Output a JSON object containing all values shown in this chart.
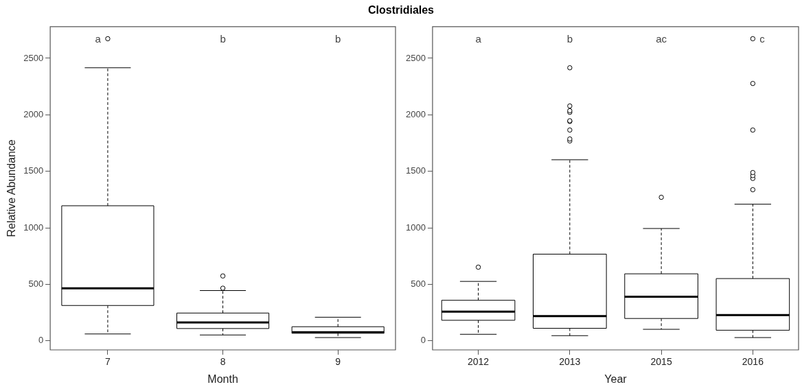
{
  "chart_data": [
    {
      "type": "box",
      "title": "Clostridiales",
      "xlabel": "Month",
      "ylabel": "Relative Abundance",
      "categories": [
        "7",
        "8",
        "9"
      ],
      "ylim": [
        -80,
        2780
      ],
      "yticks": [
        0,
        500,
        1000,
        1500,
        2000,
        2500
      ],
      "grid": false,
      "legend": false,
      "boxes": [
        {
          "low": 61,
          "q1": 313,
          "median": 464,
          "q3": 1195,
          "high": 2416,
          "outliers": [
            2673
          ]
        },
        {
          "low": 52,
          "q1": 109,
          "median": 163,
          "q3": 246,
          "high": 445,
          "outliers": [
            466,
            574
          ]
        },
        {
          "low": 29,
          "q1": 67,
          "median": 77,
          "q3": 125,
          "high": 209
        }
      ],
      "annotations": [
        "a",
        "b",
        "b"
      ]
    },
    {
      "type": "box",
      "xlabel": "Year",
      "categories": [
        "2012",
        "2013",
        "2015",
        "2016"
      ],
      "ylim": [
        -80,
        2780
      ],
      "yticks": [
        0,
        500,
        1000,
        1500,
        2000,
        2500
      ],
      "grid": false,
      "legend": false,
      "boxes": [
        {
          "low": 58,
          "q1": 182,
          "median": 259,
          "q3": 359,
          "high": 526,
          "outliers": [
            652
          ]
        },
        {
          "low": 46,
          "q1": 111,
          "median": 219,
          "q3": 767,
          "high": 1602,
          "outliers": [
            1769,
            1786,
            1865,
            1941,
            1947,
            2022,
            2036,
            2078,
            2416
          ]
        },
        {
          "low": 102,
          "q1": 198,
          "median": 391,
          "q3": 593,
          "high": 994,
          "outliers": [
            1270
          ]
        },
        {
          "low": 29,
          "q1": 94,
          "median": 228,
          "q3": 551,
          "high": 1209,
          "outliers": [
            1337,
            1437,
            1462,
            1489,
            1865,
            2277,
            2673
          ]
        }
      ],
      "annotations": [
        "a",
        "b",
        "ac",
        "c"
      ]
    }
  ]
}
